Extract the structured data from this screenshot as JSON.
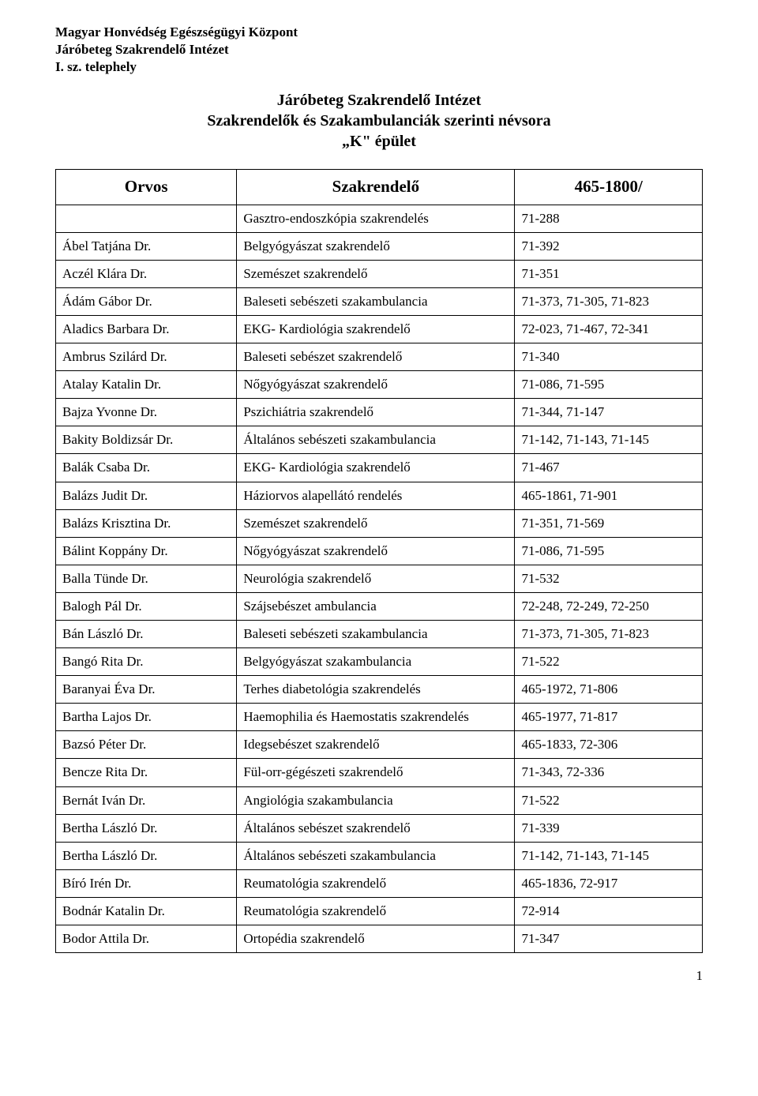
{
  "org": {
    "line1": "Magyar Honvédség Egészségügyi Központ",
    "line2": "Járóbeteg Szakrendelő Intézet",
    "line3": "I. sz. telephely"
  },
  "title": {
    "line1": "Járóbeteg Szakrendelő Intézet",
    "line2": "Szakrendelők és Szakambulanciák szerinti névsora",
    "line3": "„K\" épület"
  },
  "columns": {
    "doctor": "Orvos",
    "department": "Szakrendelő",
    "extension": "465-1800/"
  },
  "rows": [
    {
      "doctor": "",
      "department": "Gasztro-endoszkópia szakrendelés",
      "extension": "71-288"
    },
    {
      "doctor": "Ábel Tatjána Dr.",
      "department": "Belgyógyászat szakrendelő",
      "extension": "71-392"
    },
    {
      "doctor": "Aczél Klára Dr.",
      "department": "Szemészet szakrendelő",
      "extension": "71-351"
    },
    {
      "doctor": "Ádám Gábor Dr.",
      "department": "Baleseti sebészeti szakambulancia",
      "extension": "71-373, 71-305, 71-823"
    },
    {
      "doctor": "Aladics Barbara Dr.",
      "department": "EKG- Kardiológia szakrendelő",
      "extension": "72-023, 71-467, 72-341"
    },
    {
      "doctor": "Ambrus Szilárd Dr.",
      "department": "Baleseti sebészet szakrendelő",
      "extension": "71-340"
    },
    {
      "doctor": "Atalay Katalin Dr.",
      "department": "Nőgyógyászat szakrendelő",
      "extension": "71-086, 71-595"
    },
    {
      "doctor": "Bajza Yvonne Dr.",
      "department": "Pszichiátria szakrendelő",
      "extension": "71-344, 71-147"
    },
    {
      "doctor": "Bakity Boldizsár Dr.",
      "department": "Általános sebészeti szakambulancia",
      "extension": "71-142, 71-143, 71-145"
    },
    {
      "doctor": "Balák Csaba Dr.",
      "department": "EKG- Kardiológia szakrendelő",
      "extension": "71-467"
    },
    {
      "doctor": "Balázs Judit Dr.",
      "department": "Háziorvos alapellátó rendelés",
      "extension": "465-1861, 71-901"
    },
    {
      "doctor": "Balázs Krisztina Dr.",
      "department": "Szemészet szakrendelő",
      "extension": "71-351, 71-569"
    },
    {
      "doctor": "Bálint Koppány Dr.",
      "department": "Nőgyógyászat szakrendelő",
      "extension": "71-086, 71-595"
    },
    {
      "doctor": "Balla Tünde Dr.",
      "department": "Neurológia szakrendelő",
      "extension": "71-532"
    },
    {
      "doctor": "Balogh Pál Dr.",
      "department": "Szájsebészet ambulancia",
      "extension": "72-248, 72-249, 72-250"
    },
    {
      "doctor": "Bán László Dr.",
      "department": "Baleseti sebészeti szakambulancia",
      "extension": "71-373, 71-305, 71-823"
    },
    {
      "doctor": "Bangó Rita Dr.",
      "department": "Belgyógyászat szakambulancia",
      "extension": "71-522"
    },
    {
      "doctor": "Baranyai Éva Dr.",
      "department": "Terhes diabetológia szakrendelés",
      "extension": "465-1972, 71-806"
    },
    {
      "doctor": "Bartha Lajos Dr.",
      "department": "Haemophilia és Haemostatis szakrendelés",
      "extension": "465-1977, 71-817"
    },
    {
      "doctor": "Bazsó Péter Dr.",
      "department": "Idegsebészet szakrendelő",
      "extension": "465-1833, 72-306"
    },
    {
      "doctor": "Bencze Rita Dr.",
      "department": "Fül-orr-gégészeti szakrendelő",
      "extension": "71-343, 72-336"
    },
    {
      "doctor": "Bernát Iván Dr.",
      "department": "Angiológia szakambulancia",
      "extension": "71-522"
    },
    {
      "doctor": "Bertha László Dr.",
      "department": "Általános sebészet szakrendelő",
      "extension": "71-339"
    },
    {
      "doctor": "Bertha László Dr.",
      "department": "Általános sebészeti szakambulancia",
      "extension": "71-142, 71-143, 71-145"
    },
    {
      "doctor": "Bíró Irén Dr.",
      "department": "Reumatológia szakrendelő",
      "extension": "465-1836, 72-917"
    },
    {
      "doctor": "Bodnár Katalin Dr.",
      "department": "Reumatológia szakrendelő",
      "extension": "72-914"
    },
    {
      "doctor": "Bodor Attila Dr.",
      "department": "Ortopédia szakrendelő",
      "extension": "71-347"
    }
  ],
  "page_number": "1"
}
